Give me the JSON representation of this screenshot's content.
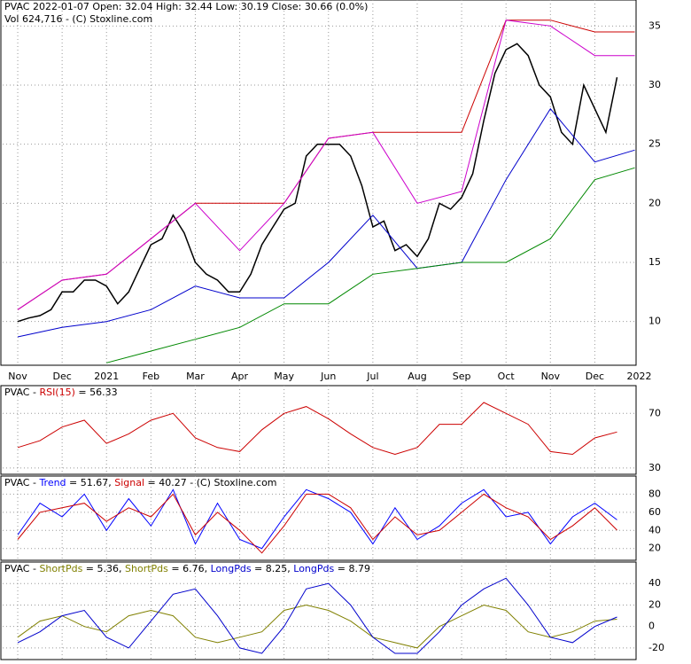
{
  "chart_data": [
    {
      "type": "line",
      "title_parts": [
        {
          "text": "PVAC  2022-01-07 Open: 32.04  High: 32.44  Low: 30.19  Close: 30.66 (0.0%)",
          "color": "#000000"
        }
      ],
      "subtitle": "Vol 624,716  - (C) Stoxline.com",
      "xlim": [
        -0.34,
        13.93
      ],
      "ylim": [
        6.3,
        37.2
      ],
      "xticks": [
        {
          "value": 0,
          "label": "Nov"
        },
        {
          "value": 1,
          "label": "Dec"
        },
        {
          "value": 2,
          "label": "2021"
        },
        {
          "value": 3,
          "label": "Feb"
        },
        {
          "value": 4,
          "label": "Mar"
        },
        {
          "value": 5,
          "label": "Apr"
        },
        {
          "value": 6,
          "label": "May"
        },
        {
          "value": 7,
          "label": "Jun"
        },
        {
          "value": 8,
          "label": "Jul"
        },
        {
          "value": 9,
          "label": "Aug"
        },
        {
          "value": 10,
          "label": "Sep"
        },
        {
          "value": 11,
          "label": "Oct"
        },
        {
          "value": 12,
          "label": "Nov"
        },
        {
          "value": 13,
          "label": "Dec"
        },
        {
          "value": 14,
          "label": "2022"
        }
      ],
      "yticks": [
        10,
        15,
        20,
        25,
        30,
        35
      ],
      "grid": true,
      "series": [
        {
          "color": "#000000",
          "x": [
            0,
            0.25,
            0.5,
            0.75,
            1,
            1.25,
            1.5,
            1.75,
            2,
            2.25,
            2.5,
            2.75,
            3,
            3.25,
            3.5,
            3.75,
            4,
            4.25,
            4.5,
            4.75,
            5,
            5.25,
            5.5,
            5.75,
            6,
            6.25,
            6.5,
            6.75,
            7,
            7.25,
            7.5,
            7.75,
            8,
            8.25,
            8.5,
            8.75,
            9,
            9.25,
            9.5,
            9.75,
            10,
            10.25,
            10.5,
            10.75,
            11,
            11.25,
            11.5,
            11.75,
            12,
            12.25,
            12.5,
            12.75,
            13,
            13.25,
            13.5
          ],
          "values": [
            10,
            10.3,
            10.5,
            11,
            12.5,
            12.5,
            13.5,
            13.5,
            13,
            11.5,
            12.5,
            14.5,
            16.5,
            17,
            19,
            17.5,
            15,
            14,
            13.5,
            12.5,
            12.5,
            14,
            16.5,
            18,
            19.5,
            20,
            24,
            25,
            25,
            25,
            24,
            21.5,
            18,
            18.5,
            16,
            16.5,
            15.5,
            17,
            20,
            19.5,
            20.5,
            22.5,
            27,
            31,
            33,
            33.5,
            32.5,
            30,
            29,
            26,
            25,
            30,
            28,
            26,
            30.66
          ]
        },
        {
          "color": "#cc0000",
          "x": [
            0,
            1,
            2,
            3,
            4,
            5,
            6,
            7,
            8,
            9,
            10,
            11,
            12,
            13,
            13.9
          ],
          "values": [
            11,
            13.5,
            14,
            17,
            20,
            20,
            20,
            25.5,
            26,
            26,
            26,
            35.5,
            35.5,
            34.5,
            34.5
          ]
        },
        {
          "color": "#cc00cc",
          "x": [
            0,
            1,
            2,
            3,
            4,
            5,
            6,
            7,
            8,
            9,
            10,
            11,
            12,
            13,
            13.9
          ],
          "values": [
            11,
            13.5,
            14,
            17,
            20,
            16,
            20,
            25.5,
            26,
            20,
            21,
            35.5,
            35,
            32.5,
            32.5
          ]
        },
        {
          "color": "#0000cc",
          "x": [
            0,
            1,
            2,
            3,
            4,
            5,
            6,
            7,
            8,
            9,
            10,
            11,
            12,
            13,
            13.9
          ],
          "values": [
            8.7,
            9.5,
            10,
            11,
            13,
            12,
            12,
            15,
            19,
            14.5,
            15,
            22,
            28,
            23.5,
            24.5
          ]
        },
        {
          "color": "#008800",
          "x": [
            2,
            3,
            4,
            5,
            6,
            7,
            8,
            9,
            10,
            11,
            12,
            13,
            13.9
          ],
          "values": [
            6.5,
            7.5,
            8.5,
            9.5,
            11.5,
            11.5,
            14,
            14.5,
            15,
            15,
            17,
            22,
            23
          ]
        }
      ]
    },
    {
      "type": "line",
      "title_parts": [
        {
          "text": "PVAC - ",
          "color": "#000000"
        },
        {
          "text": "RSI(15)",
          "color": "#cc0000"
        },
        {
          "text": " = 56.33",
          "color": "#000000"
        }
      ],
      "xlim": [
        -0.34,
        13.93
      ],
      "ylim": [
        25.4,
        90.3
      ],
      "yticks": [
        30,
        70
      ],
      "grid": true,
      "series": [
        {
          "color": "#cc0000",
          "x": [
            0,
            0.5,
            1,
            1.5,
            2,
            2.5,
            3,
            3.5,
            4,
            4.5,
            5,
            5.5,
            6,
            6.5,
            7,
            7.5,
            8,
            8.5,
            9,
            9.5,
            10,
            10.5,
            11,
            11.5,
            12,
            12.5,
            13,
            13.5
          ],
          "values": [
            45,
            50,
            60,
            65,
            48,
            55,
            65,
            70,
            52,
            45,
            42,
            58,
            70,
            75,
            66,
            55,
            45,
            40,
            45,
            62,
            62,
            78,
            70,
            62,
            42,
            40,
            52,
            56.33
          ]
        }
      ]
    },
    {
      "type": "line",
      "title_parts": [
        {
          "text": "PVAC - ",
          "color": "#000000"
        },
        {
          "text": "Trend",
          "color": "#0000ff"
        },
        {
          "text": " = 51.67, ",
          "color": "#000000"
        },
        {
          "text": "Signal",
          "color": "#cc0000"
        },
        {
          "text": " = 40.27 - (C) Stoxline.com",
          "color": "#000000"
        }
      ],
      "xlim": [
        -0.34,
        13.93
      ],
      "ylim": [
        7,
        100
      ],
      "yticks": [
        20,
        40,
        60,
        80
      ],
      "grid": true,
      "series": [
        {
          "color": "#0000ff",
          "x": [
            0,
            0.5,
            1,
            1.5,
            2,
            2.5,
            3,
            3.5,
            4,
            4.5,
            5,
            5.5,
            6,
            6.5,
            7,
            7.5,
            8,
            8.5,
            9,
            9.5,
            10,
            10.5,
            11,
            11.5,
            12,
            12.5,
            13,
            13.5
          ],
          "values": [
            35,
            70,
            55,
            80,
            40,
            75,
            45,
            85,
            25,
            70,
            30,
            20,
            55,
            85,
            75,
            60,
            25,
            65,
            30,
            45,
            70,
            85,
            55,
            60,
            25,
            55,
            70,
            51.67
          ]
        },
        {
          "color": "#cc0000",
          "x": [
            0,
            0.5,
            1,
            1.5,
            2,
            2.5,
            3,
            3.5,
            4,
            4.5,
            5,
            5.5,
            6,
            6.5,
            7,
            7.5,
            8,
            8.5,
            9,
            9.5,
            10,
            10.5,
            11,
            11.5,
            12,
            12.5,
            13,
            13.5
          ],
          "values": [
            30,
            60,
            65,
            70,
            50,
            65,
            55,
            80,
            35,
            60,
            40,
            15,
            45,
            80,
            80,
            65,
            30,
            55,
            35,
            40,
            60,
            80,
            65,
            55,
            30,
            45,
            65,
            40.27
          ]
        }
      ]
    },
    {
      "type": "line",
      "title_parts": [
        {
          "text": "PVAC - ",
          "color": "#000000"
        },
        {
          "text": "ShortPds",
          "color": "#808000"
        },
        {
          "text": " = 5.36, ",
          "color": "#000000"
        },
        {
          "text": "ShortPds",
          "color": "#808000"
        },
        {
          "text": " = 6.76, ",
          "color": "#000000"
        },
        {
          "text": "LongPds",
          "color": "#0000cc"
        },
        {
          "text": " = 8.25, ",
          "color": "#000000"
        },
        {
          "text": "LongPds",
          "color": "#0000cc"
        },
        {
          "text": " = 8.79",
          "color": "#000000"
        }
      ],
      "xlim": [
        -0.34,
        13.93
      ],
      "ylim": [
        -30.8,
        60
      ],
      "yticks": [
        -20,
        0,
        20,
        40
      ],
      "grid": true,
      "series": [
        {
          "color": "#808000",
          "x": [
            0,
            0.5,
            1,
            1.5,
            2,
            2.5,
            3,
            3.5,
            4,
            4.5,
            5,
            5.5,
            6,
            6.5,
            7,
            7.5,
            8,
            8.5,
            9,
            9.5,
            10,
            10.5,
            11,
            11.5,
            12,
            12.5,
            13,
            13.5
          ],
          "values": [
            -10,
            5,
            10,
            0,
            -5,
            10,
            15,
            10,
            -10,
            -15,
            -10,
            -5,
            15,
            20,
            15,
            5,
            -10,
            -15,
            -20,
            0,
            10,
            20,
            15,
            -5,
            -10,
            -5,
            5,
            6.76
          ]
        },
        {
          "color": "#0000cc",
          "x": [
            0,
            0.5,
            1,
            1.5,
            2,
            2.5,
            3,
            3.5,
            4,
            4.5,
            5,
            5.5,
            6,
            6.5,
            7,
            7.5,
            8,
            8.5,
            9,
            9.5,
            10,
            10.5,
            11,
            11.5,
            12,
            12.5,
            13,
            13.5
          ],
          "values": [
            -15,
            -5,
            10,
            15,
            -10,
            -20,
            5,
            30,
            35,
            10,
            -20,
            -25,
            0,
            35,
            40,
            20,
            -10,
            -25,
            -25,
            -5,
            20,
            35,
            45,
            20,
            -10,
            -15,
            0,
            8.79
          ]
        }
      ]
    }
  ]
}
